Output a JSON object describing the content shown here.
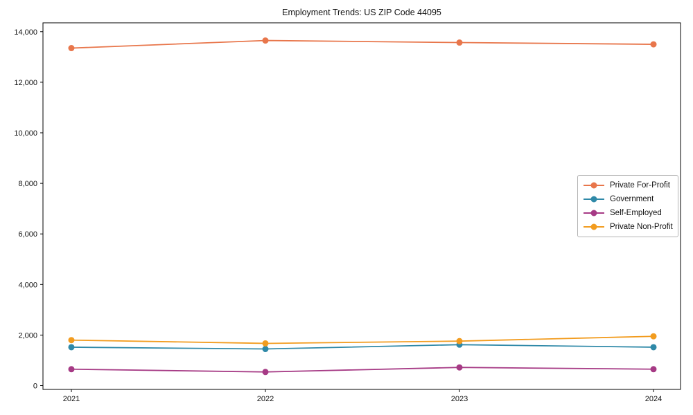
{
  "chart_data": {
    "type": "line",
    "title": "Employment Trends: US ZIP Code 44095",
    "xlabel": "",
    "ylabel": "",
    "x": [
      "2021",
      "2022",
      "2023",
      "2024"
    ],
    "ylim": [
      -150,
      14350
    ],
    "yticks": [
      0,
      2000,
      4000,
      6000,
      8000,
      10000,
      12000,
      14000
    ],
    "grid": false,
    "legend_position": "center right",
    "series": [
      {
        "name": "Private For-Profit",
        "color": "#e8764b",
        "values": [
          13350,
          13650,
          13570,
          13500
        ]
      },
      {
        "name": "Government",
        "color": "#2f89a8",
        "values": [
          1520,
          1450,
          1620,
          1520
        ]
      },
      {
        "name": "Self-Employed",
        "color": "#a63a85",
        "values": [
          650,
          540,
          720,
          650
        ]
      },
      {
        "name": "Private Non-Profit",
        "color": "#f29c1f",
        "values": [
          1800,
          1670,
          1760,
          1950
        ]
      }
    ],
    "axis_color": "#000000",
    "tick_label_color": "#111111"
  }
}
